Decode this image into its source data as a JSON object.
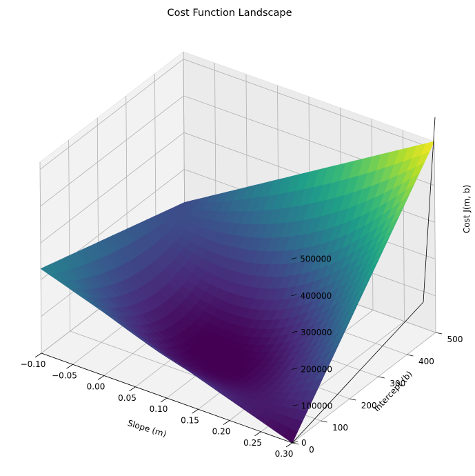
{
  "chart_data": {
    "type": "surface3d",
    "title": "Cost Function Landscape",
    "xlabel": "Slope (m)",
    "ylabel": "Intercept (b)",
    "zlabel": "Cost J(m, b)",
    "xlim": [
      -0.1,
      0.3
    ],
    "ylim": [
      0,
      500
    ],
    "zlim": [
      0,
      520000
    ],
    "x_ticks": [
      "−0.10",
      "−0.05",
      "0.00",
      "0.05",
      "0.10",
      "0.15",
      "0.20",
      "0.25",
      "0.30"
    ],
    "y_ticks": [
      "0",
      "100",
      "200",
      "300",
      "400",
      "500"
    ],
    "z_ticks": [
      "0",
      "100000",
      "200000",
      "300000",
      "400000",
      "500000"
    ],
    "x_tick_values": [
      -0.1,
      -0.05,
      0,
      0.05,
      0.1,
      0.15,
      0.2,
      0.25,
      0.3
    ],
    "y_tick_values": [
      0,
      100,
      200,
      300,
      400,
      500
    ],
    "z_tick_values": [
      0,
      100000,
      200000,
      300000,
      400000,
      500000
    ],
    "surface_samples": [
      {
        "m": -0.1,
        "b": 0,
        "cost": 230000
      },
      {
        "m": 0.3,
        "b": 0,
        "cost": 0
      },
      {
        "m": -0.1,
        "b": 500,
        "cost": 110000
      },
      {
        "m": 0.3,
        "b": 500,
        "cost": 520000
      },
      {
        "m": 0.1,
        "b": 250,
        "cost": 0
      }
    ],
    "colormap": "viridis",
    "colormap_stops": [
      "#440154",
      "#482878",
      "#3e4989",
      "#31688e",
      "#26828e",
      "#1f9e89",
      "#35b779",
      "#6ece58",
      "#b5de2b",
      "#fde725"
    ],
    "grid": true
  }
}
